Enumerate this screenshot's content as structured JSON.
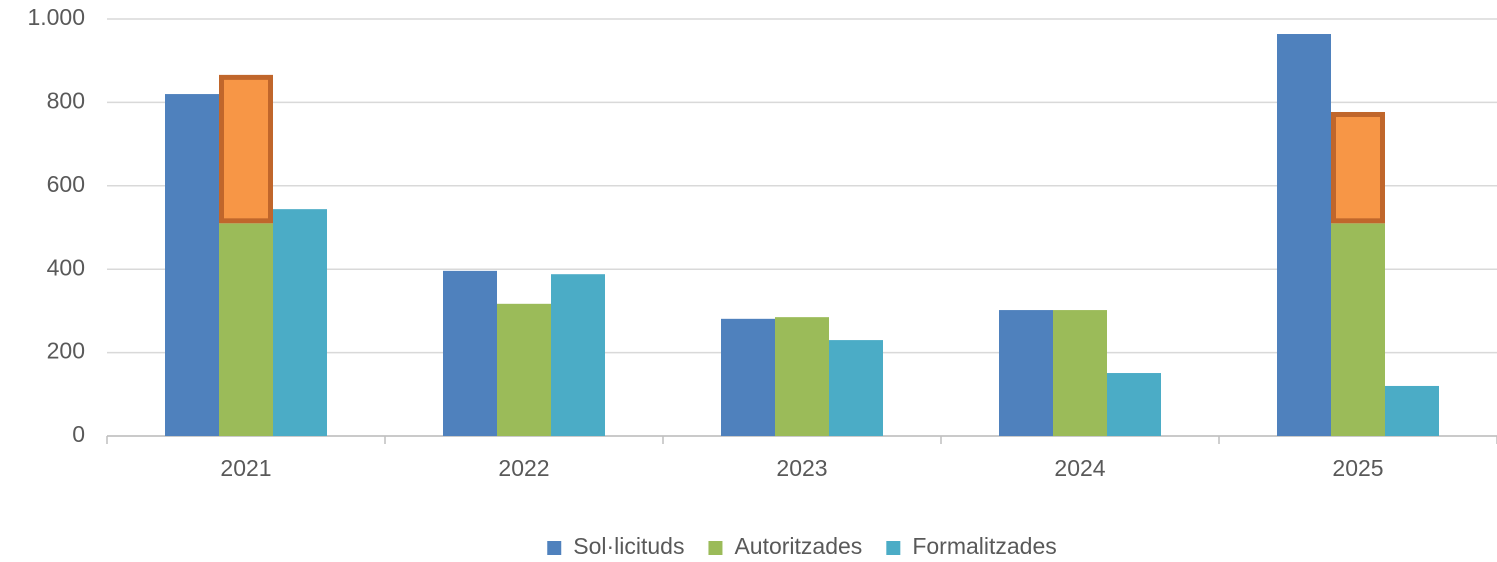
{
  "chart_data": {
    "type": "bar",
    "categories": [
      "2021",
      "2022",
      "2023",
      "2024",
      "2025"
    ],
    "series": [
      {
        "name": "Sol·licituds",
        "color": "#4f81bd",
        "values": [
          820,
          396,
          281,
          302,
          964
        ]
      },
      {
        "name": "Autoritzades",
        "color": "#9bbb59",
        "values": [
          510,
          317,
          285,
          302,
          510
        ]
      },
      {
        "name": "Formalitzades",
        "color": "#4bacc6",
        "values": [
          544,
          388,
          230,
          151,
          120
        ]
      }
    ],
    "highlight": {
      "color": "#f79646",
      "border": "#c0662b",
      "stack_series": 1,
      "values": [
        356,
        null,
        null,
        null,
        267
      ]
    },
    "ylim": [
      0,
      1000
    ],
    "yticks": [
      0,
      200,
      400,
      600,
      800,
      {
        "value": 1000,
        "label": "1.000"
      }
    ],
    "grid": true,
    "legend": "bottom"
  }
}
